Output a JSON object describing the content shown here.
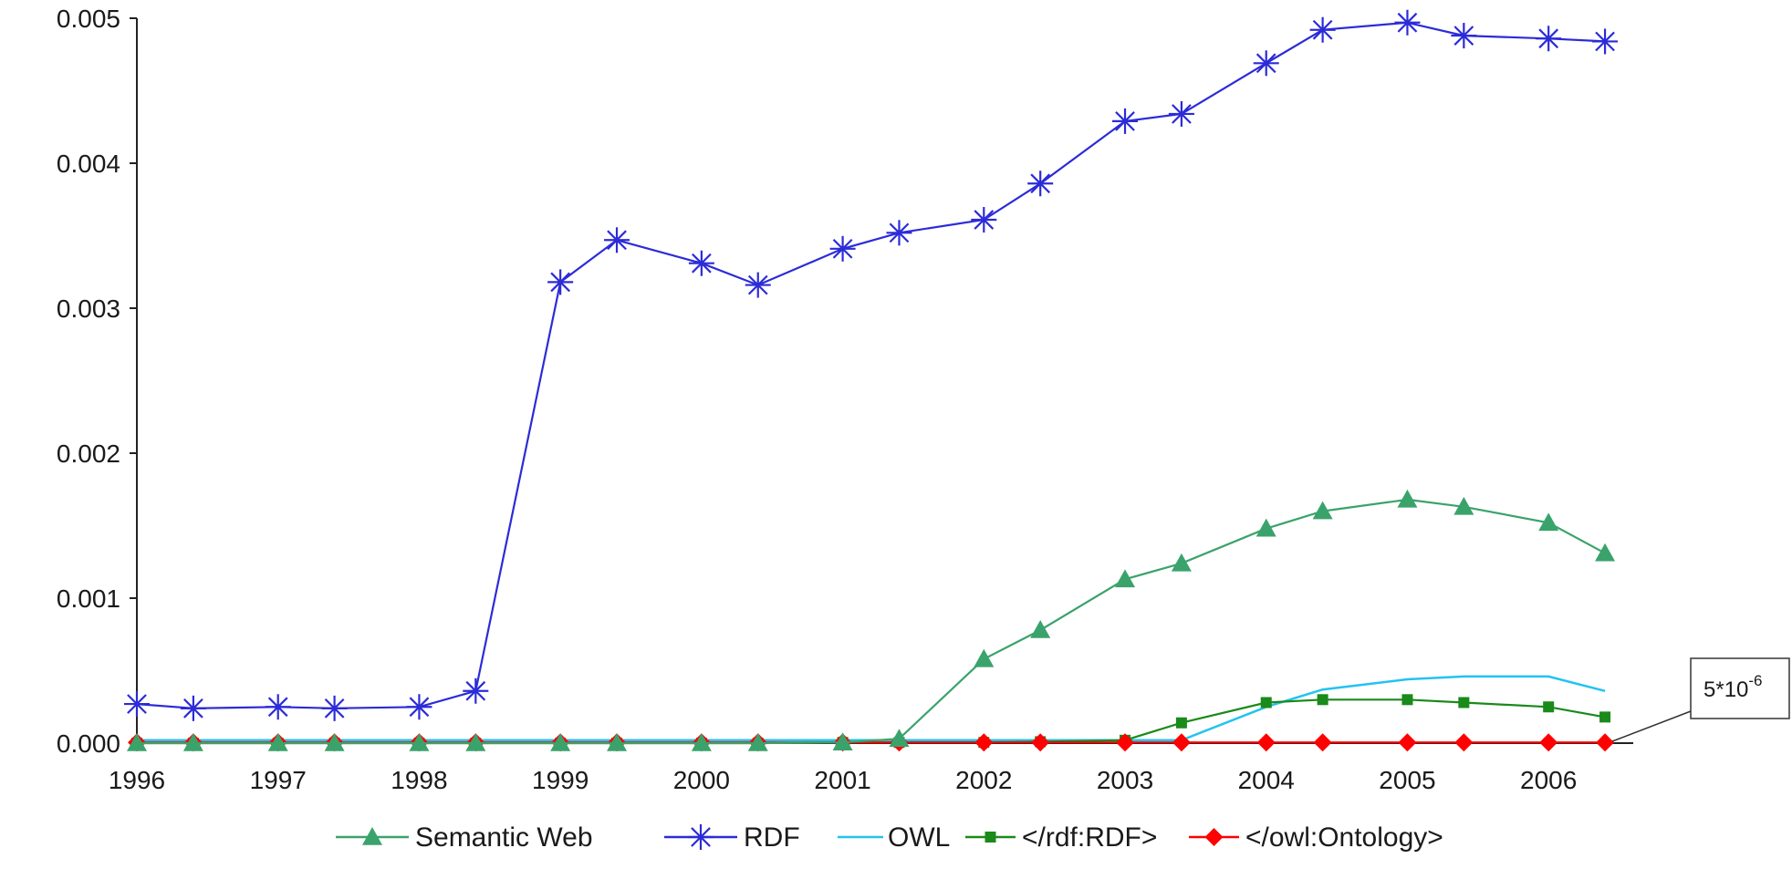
{
  "chart_data": {
    "type": "line",
    "x_ticks": [
      "1996",
      "1997",
      "1998",
      "1999",
      "2000",
      "2001",
      "2002",
      "2003",
      "2004",
      "2005",
      "2006"
    ],
    "y_ticks": [
      "0.000",
      "0.001",
      "0.002",
      "0.003",
      "0.004",
      "0.005"
    ],
    "ylim": [
      0,
      0.005
    ],
    "xlim": [
      1996,
      2006.6
    ],
    "grid": false,
    "legend_position": "bottom",
    "x": [
      1996.0,
      1996.4,
      1997.0,
      1997.4,
      1998.0,
      1998.4,
      1999.0,
      1999.4,
      2000.0,
      2000.4,
      2001.0,
      2001.4,
      2002.0,
      2002.4,
      2003.0,
      2003.4,
      2004.0,
      2004.4,
      2005.0,
      2005.4,
      2006.0,
      2006.4
    ],
    "series": [
      {
        "name": "Semantic Web",
        "color": "#3aa36b",
        "marker": "triangle",
        "values": [
          0,
          0,
          0,
          0,
          0,
          0,
          0,
          0,
          0,
          0,
          5e-06,
          3e-05,
          0.00058,
          0.00078,
          0.00113,
          0.00124,
          0.00148,
          0.0016,
          0.00168,
          0.00163,
          0.00152,
          0.00131
        ]
      },
      {
        "name": "RDF",
        "color": "#2b2bd9",
        "marker": "asterisk",
        "values": [
          0.00027,
          0.00024,
          0.00025,
          0.00024,
          0.00025,
          0.00036,
          0.00318,
          0.00347,
          0.00331,
          0.00316,
          0.00341,
          0.00352,
          0.00361,
          0.00386,
          0.00429,
          0.00434,
          0.00469,
          0.00492,
          0.00497,
          0.00488,
          0.00486,
          0.00484
        ]
      },
      {
        "name": "OWL",
        "color": "#22c3f0",
        "marker": "none",
        "values": [
          2e-05,
          2e-05,
          2e-05,
          2e-05,
          2e-05,
          2e-05,
          2e-05,
          2e-05,
          2e-05,
          2e-05,
          2e-05,
          2e-05,
          2e-05,
          2e-05,
          2e-05,
          2e-05,
          0.00025,
          0.00037,
          0.00044,
          0.00046,
          0.00046,
          0.00036
        ]
      },
      {
        "name": "</rdf:RDF>",
        "color": "#1a8a1a",
        "marker": "square",
        "values": [
          0,
          0,
          0,
          0,
          0,
          0,
          0,
          0,
          0,
          0,
          5e-06,
          5e-06,
          5e-06,
          1e-05,
          2e-05,
          0.00014,
          0.00028,
          0.0003,
          0.0003,
          0.00028,
          0.00025,
          0.00018
        ]
      },
      {
        "name": "</owl:Ontology>",
        "color": "#ff0000",
        "marker": "diamond",
        "values": [
          5e-06,
          5e-06,
          5e-06,
          5e-06,
          5e-06,
          5e-06,
          5e-06,
          5e-06,
          5e-06,
          5e-06,
          5e-06,
          5e-06,
          5e-06,
          5e-06,
          5e-06,
          5e-06,
          5e-06,
          5e-06,
          5e-06,
          5e-06,
          5e-06,
          5e-06
        ]
      }
    ],
    "annotations": [
      {
        "text": "5*10",
        "superscript": "-6"
      }
    ]
  }
}
